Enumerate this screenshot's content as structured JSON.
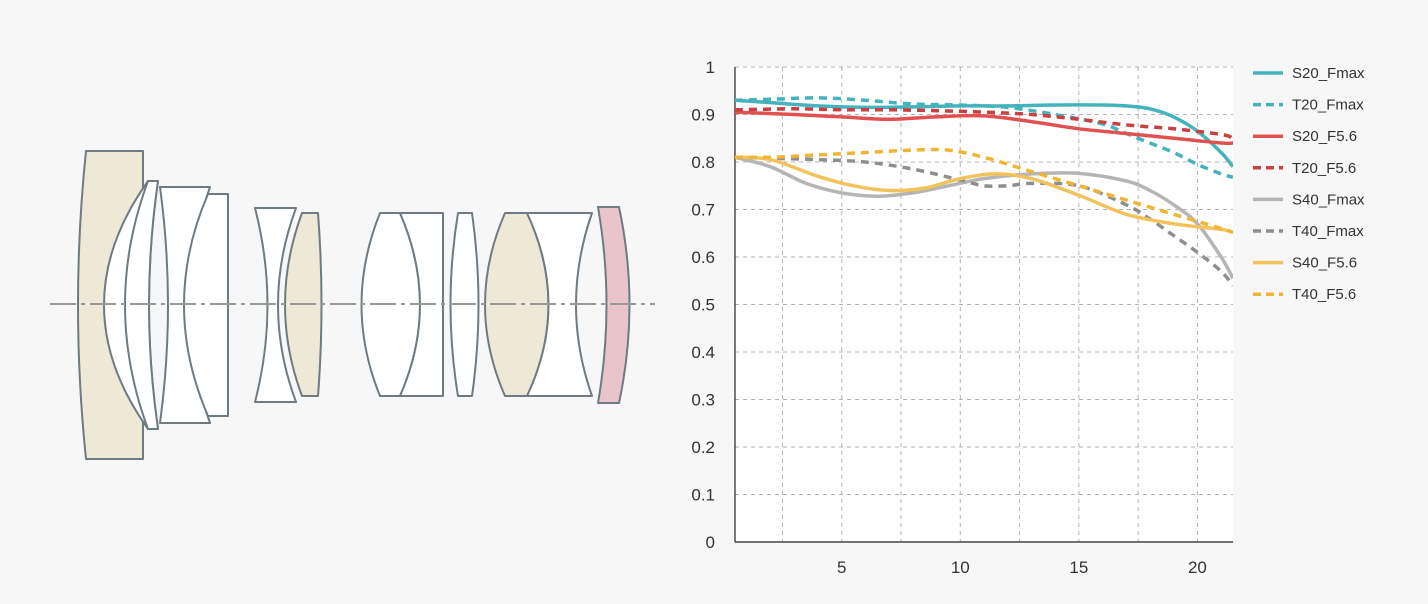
{
  "chart_data": {
    "type": "line",
    "title": "",
    "xlabel": "",
    "ylabel": "",
    "xlim": [
      0.5,
      21.5
    ],
    "ylim": [
      0,
      1
    ],
    "x_ticks": [
      5,
      10,
      15,
      20
    ],
    "y_ticks": [
      0,
      0.1,
      0.2,
      0.3,
      0.4,
      0.5,
      0.6,
      0.7,
      0.8,
      0.9,
      1
    ],
    "y_tick_labels": [
      "0",
      "0.1",
      "0.2",
      "0.3",
      "0.4",
      "0.5",
      "0.6",
      "0.7",
      "0.8",
      "0.9",
      "1"
    ],
    "grid": true,
    "legend_position": "right",
    "series": [
      {
        "name": "S20_Fmax",
        "color": "#45b3bd",
        "dash": "solid",
        "x": [
          0.5,
          2,
          4,
          6,
          8,
          10,
          12,
          14,
          16,
          17,
          18,
          19,
          20,
          21,
          21.5
        ],
        "y": [
          0.93,
          0.925,
          0.918,
          0.915,
          0.916,
          0.918,
          0.918,
          0.92,
          0.92,
          0.918,
          0.912,
          0.895,
          0.865,
          0.82,
          0.79
        ]
      },
      {
        "name": "T20_Fmax",
        "color": "#45b3bd",
        "dash": "dashed",
        "x": [
          0.5,
          2,
          4,
          6,
          8,
          10,
          12,
          14,
          16,
          17,
          18,
          19,
          20,
          21,
          21.5
        ],
        "y": [
          0.93,
          0.932,
          0.935,
          0.93,
          0.922,
          0.92,
          0.915,
          0.9,
          0.88,
          0.86,
          0.84,
          0.82,
          0.795,
          0.775,
          0.768
        ]
      },
      {
        "name": "S20_F5.6",
        "color": "#e05252",
        "dash": "solid",
        "x": [
          0.5,
          3,
          5,
          7,
          9,
          11,
          13,
          15,
          17,
          19,
          21,
          21.5
        ],
        "y": [
          0.905,
          0.9,
          0.895,
          0.89,
          0.895,
          0.897,
          0.885,
          0.87,
          0.86,
          0.85,
          0.84,
          0.84
        ]
      },
      {
        "name": "T20_F5.6",
        "color": "#c8403f",
        "dash": "dashed",
        "x": [
          0.5,
          3,
          5,
          7,
          9,
          11,
          13,
          15,
          17,
          19,
          21,
          21.5
        ],
        "y": [
          0.91,
          0.912,
          0.91,
          0.91,
          0.908,
          0.905,
          0.9,
          0.89,
          0.878,
          0.87,
          0.858,
          0.85
        ]
      },
      {
        "name": "S40_Fmax",
        "color": "#b5b5b5",
        "dash": "solid",
        "x": [
          0.5,
          2,
          3.5,
          5,
          6.5,
          8,
          9.5,
          11,
          13,
          15,
          17,
          18,
          19,
          20,
          21,
          21.5
        ],
        "y": [
          0.81,
          0.79,
          0.755,
          0.735,
          0.728,
          0.735,
          0.75,
          0.765,
          0.775,
          0.776,
          0.76,
          0.74,
          0.71,
          0.67,
          0.6,
          0.555
        ]
      },
      {
        "name": "T40_Fmax",
        "color": "#8f8f8f",
        "dash": "dashed",
        "x": [
          0.5,
          2,
          4,
          6,
          8,
          10,
          11,
          12,
          13,
          15,
          17,
          18,
          19,
          20,
          21,
          21.5
        ],
        "y": [
          0.81,
          0.808,
          0.805,
          0.8,
          0.785,
          0.762,
          0.75,
          0.75,
          0.755,
          0.75,
          0.71,
          0.68,
          0.645,
          0.61,
          0.57,
          0.54
        ]
      },
      {
        "name": "S40_F5.6",
        "color": "#f2c25c",
        "dash": "solid",
        "x": [
          0.5,
          2,
          4,
          5.5,
          7,
          8.5,
          10,
          11.5,
          13,
          15,
          17,
          19,
          21,
          21.5
        ],
        "y": [
          0.81,
          0.805,
          0.77,
          0.75,
          0.74,
          0.745,
          0.765,
          0.775,
          0.765,
          0.73,
          0.69,
          0.67,
          0.658,
          0.652
        ]
      },
      {
        "name": "T40_F5.6",
        "color": "#efb533",
        "dash": "dashed",
        "x": [
          0.5,
          2,
          4,
          6,
          8,
          9.5,
          11,
          13,
          15,
          17,
          19,
          21,
          21.5
        ],
        "y": [
          0.81,
          0.81,
          0.815,
          0.82,
          0.825,
          0.825,
          0.81,
          0.78,
          0.75,
          0.72,
          0.69,
          0.66,
          0.652
        ]
      }
    ]
  },
  "lens_diagram": {
    "elements": [
      {
        "name": "lens-element-1",
        "fill": "#ede9d6"
      },
      {
        "name": "lens-element-2",
        "fill": "#ffffff"
      },
      {
        "name": "lens-element-3",
        "fill": "#ffffff"
      },
      {
        "name": "lens-element-4",
        "fill": "#ffffff"
      },
      {
        "name": "lens-element-5",
        "fill": "#ede9d6"
      },
      {
        "name": "lens-element-6",
        "fill": "#ffffff"
      },
      {
        "name": "lens-element-7",
        "fill": "#ffffff"
      },
      {
        "name": "lens-element-8",
        "fill": "#ffffff"
      },
      {
        "name": "lens-element-9",
        "fill": "#ede9d6"
      },
      {
        "name": "lens-element-10",
        "fill": "#ffffff"
      },
      {
        "name": "lens-element-11",
        "fill": "#e9c4cb"
      }
    ],
    "stroke_color": "#6e7b83",
    "axis_color": "#999999"
  }
}
